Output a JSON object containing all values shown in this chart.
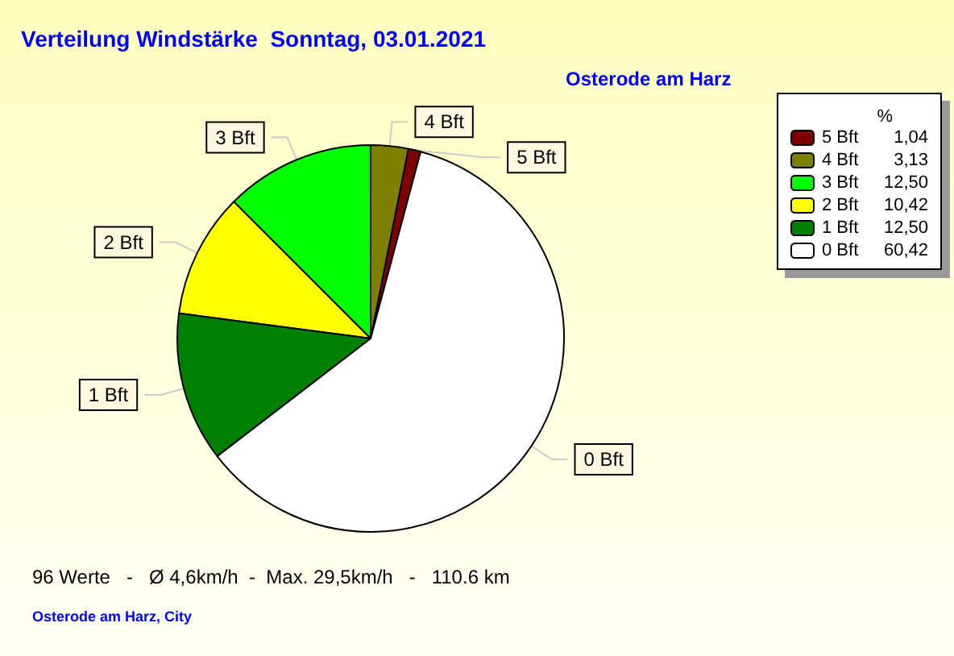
{
  "chart_data": {
    "type": "pie",
    "title": "Verteilung Windstärke  Sonntag, 03.01.2021",
    "subtitle": "Osterode am Harz",
    "legend_title": "%",
    "categories": [
      "5 Bft",
      "4 Bft",
      "3 Bft",
      "2 Bft",
      "1 Bft",
      "0 Bft"
    ],
    "values": [
      1.04,
      3.13,
      12.5,
      10.42,
      12.5,
      60.42
    ],
    "value_labels": [
      "1,04",
      "3,13",
      "12,50",
      "10,42",
      "12,50",
      "60,42"
    ],
    "colors": [
      "#800000",
      "#808000",
      "#00ff00",
      "#ffff00",
      "#008000",
      "#ffffff"
    ],
    "legend": "top right",
    "annotations": [
      "96 Werte   -   Ø 4,6km/h  -  Max. 29,5km/h   -   110.6 km",
      "Osterode am Harz, City"
    ]
  }
}
